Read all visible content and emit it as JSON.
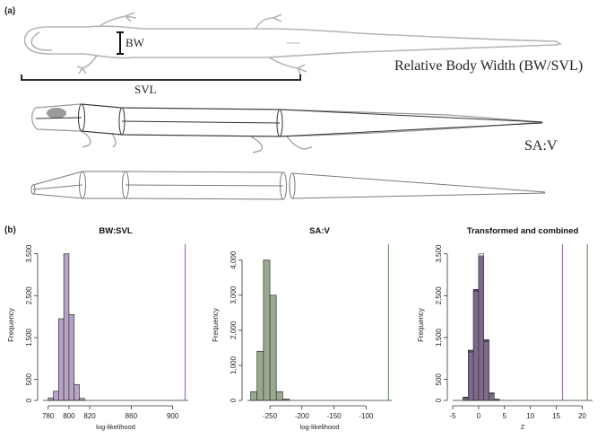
{
  "panel_labels": {
    "a": "(a)",
    "b": "(b)"
  },
  "salamander": {
    "bw_label": "BW",
    "svl_label": "SVL",
    "relative_body_width_label": "Relative Body Width (BW/SVL)",
    "sa_v_label": "SA:V"
  },
  "colors": {
    "purple_bar": "#b7a3c6",
    "green_bar": "#9aa88f",
    "dark_combined": "#5f4a6c",
    "purple_line": "#9a6fc0",
    "green_line": "#6f9a5f",
    "outline": "#b5b5b5"
  },
  "chart_data": [
    {
      "type": "bar",
      "title": "BW:SVL",
      "xlabel": "log-likelihood",
      "ylabel": "Frequency",
      "xlim": [
        775,
        915
      ],
      "ylim": [
        0,
        3600
      ],
      "xticks": [
        780,
        800,
        820,
        860,
        900
      ],
      "yticks": [
        0,
        500,
        1500,
        2500,
        3500
      ],
      "ytick_labels": [
        "0",
        "500",
        "1,500",
        "2,500",
        "3,500"
      ],
      "bin_width": 5,
      "bins": [
        780,
        785,
        790,
        795,
        800,
        805,
        810
      ],
      "values": [
        60,
        220,
        1950,
        3500,
        2050,
        380,
        50
      ],
      "observed_line": 912
    },
    {
      "type": "bar",
      "title": "SA:V",
      "xlabel": "log-likelihood",
      "ylabel": "Frequency",
      "xlim": [
        -285,
        -60
      ],
      "ylim": [
        0,
        4300
      ],
      "xticks": [
        -250,
        -200,
        -150,
        -100
      ],
      "yticks": [
        0,
        1000,
        2000,
        3000,
        4000
      ],
      "ytick_labels": [
        "0",
        "1,000",
        "2,000",
        "3,000",
        "4,000"
      ],
      "bin_width": 10,
      "bins": [
        -280,
        -270,
        -260,
        -250,
        -240,
        -230
      ],
      "values": [
        250,
        1400,
        4000,
        3000,
        250,
        40
      ],
      "observed_line": -65
    },
    {
      "type": "bar",
      "title": "Transformed and combined",
      "xlabel": "Z",
      "ylabel": "Frequency",
      "xlim": [
        -5,
        22
      ],
      "ylim": [
        0,
        3600
      ],
      "xticks": [
        -5,
        0,
        5,
        10,
        15,
        20
      ],
      "yticks": [
        0,
        500,
        1500,
        2500,
        3500
      ],
      "ytick_labels": [
        "0",
        "500",
        "1,500",
        "2,500",
        "3,500"
      ],
      "bin_width": 1,
      "bins": [
        -3,
        -2,
        -1,
        0,
        1,
        2,
        3
      ],
      "values": [
        80,
        1200,
        2650,
        3450,
        1450,
        180,
        30
      ],
      "overlay_values": [
        60,
        1150,
        2600,
        3500,
        1400,
        160,
        20
      ],
      "lines": [
        {
          "value": 16.2,
          "color": "#9a6fc0"
        },
        {
          "value": 21,
          "color": "#6f9a5f"
        }
      ]
    }
  ]
}
